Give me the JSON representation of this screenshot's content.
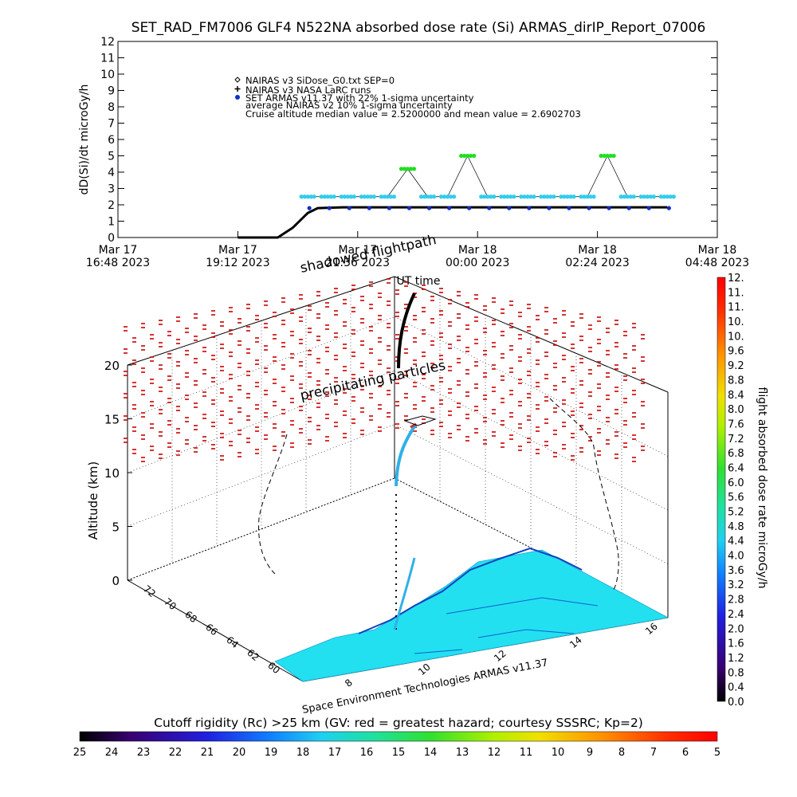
{
  "title": "SET_RAD_FM7006  GLF4 N522NA absorbed dose rate (Si) ARMAS_dirIP_Report_07006",
  "colors": {
    "nairas_sidose": "#000000",
    "larc": "#000000",
    "armas": "#1030c8",
    "uncertainty": "#33ccee",
    "high_dose": "#22dd22",
    "precip": "#cc0000",
    "ground": "#22e0f0"
  },
  "top_chart": {
    "ylabel": "dD(Si)/dt microGy/h",
    "xlabel": "UT time",
    "yticks": [
      "0",
      "1",
      "2",
      "3",
      "4",
      "5",
      "6",
      "7",
      "8",
      "9",
      "10",
      "11",
      "12"
    ],
    "xticks": [
      {
        "line1": "Mar 17",
        "line2": "16:48 2023"
      },
      {
        "line1": "Mar 17",
        "line2": "19:12 2023"
      },
      {
        "line1": "Mar 17",
        "line2": "21:36 2023"
      },
      {
        "line1": "Mar 18",
        "line2": "00:00 2023"
      },
      {
        "line1": "Mar 18",
        "line2": "02:24 2023"
      },
      {
        "line1": "Mar 18",
        "line2": "04:48 2023"
      }
    ],
    "legend": [
      {
        "marker": "diamond",
        "text": "NAIRAS v3 SiDose_G0.txt SEP=0"
      },
      {
        "marker": "plus",
        "text": "NAIRAS v3 NASA LaRC runs"
      },
      {
        "marker": "dot",
        "text": "SET ARMAS v11.37 with 22% 1-sigma uncertainty"
      },
      {
        "marker": "none",
        "text": "average NAIRAS v2 10% 1-sigma uncertainty"
      },
      {
        "marker": "none",
        "text": "Cruise altitude median value =   2.5200000 and mean value =   2.6902703"
      }
    ],
    "overlay_label": "shadowed flightpath"
  },
  "chart_data": [
    {
      "type": "scatter",
      "title": "SET_RAD_FM7006  GLF4 N522NA absorbed dose rate (Si) ARMAS_dirIP_Report_07006",
      "xlabel": "UT time",
      "ylabel": "dD(Si)/dt microGy/h",
      "x_unit": "hours since Mar 17 16:48 2023",
      "xlim": [
        0,
        12
      ],
      "ylim": [
        0,
        12
      ],
      "grid": false,
      "legend_position": "top-left",
      "series": [
        {
          "name": "NAIRAS v3 SiDose_G0.txt SEP=0",
          "x": [
            2.4,
            3.2,
            3.5,
            3.8,
            4.0,
            4.5,
            6.0,
            8.0,
            10.0,
            11.0
          ],
          "values": [
            0.0,
            0.0,
            0.6,
            1.5,
            1.8,
            1.85,
            1.85,
            1.85,
            1.85,
            1.85
          ]
        },
        {
          "name": "SET ARMAS v11.37 with 22% 1-sigma uncertainty",
          "x": [
            3.8,
            4.2,
            4.6,
            5.0,
            5.4,
            5.8,
            6.2,
            6.6,
            7.0,
            7.4,
            7.8,
            8.2,
            8.6,
            9.0,
            9.4,
            9.8,
            10.2,
            10.6,
            11.0
          ],
          "values": [
            2.5,
            2.5,
            2.5,
            2.5,
            2.5,
            4.2,
            2.5,
            2.5,
            5.0,
            2.5,
            2.5,
            2.5,
            2.5,
            2.5,
            2.5,
            5.0,
            2.5,
            2.5,
            2.5
          ]
        }
      ]
    },
    {
      "type": "scatter",
      "title": "",
      "ylabel": "Altitude (km)",
      "ylim": [
        0,
        20
      ],
      "yticks": [
        "0",
        "5",
        "10",
        "15",
        "20"
      ],
      "lat_ticks": [
        "60",
        "62",
        "64",
        "66",
        "68",
        "70",
        "72"
      ],
      "lon_ticks": [
        "8",
        "10",
        "12",
        "14",
        "16"
      ],
      "annotation": "precipitating particles",
      "footer": "Space Environment Technologies ARMAS v11.37"
    }
  ],
  "dose_colorbar": {
    "label": "flight absorbed dose rate microGy/h",
    "ticks": [
      "0.0",
      "0.4",
      "0.8",
      "1.2",
      "1.6",
      "2.0",
      "2.4",
      "2.8",
      "3.2",
      "3.6",
      "4.0",
      "4.4",
      "4.8",
      "5.2",
      "5.6",
      "6.0",
      "6.4",
      "6.8",
      "7.2",
      "7.6",
      "8.0",
      "8.4",
      "8.8",
      "9.2",
      "9.6",
      "10.",
      "10.",
      "11.",
      "11.",
      "12."
    ]
  },
  "cutoff_colorbar": {
    "label": "Cutoff rigidity (Rc) >25 km (GV: red = greatest hazard; courtesy SSSRC; Kp=2)",
    "ticks": [
      "25",
      "24",
      "23",
      "22",
      "21",
      "20",
      "19",
      "18",
      "17",
      "16",
      "15",
      "14",
      "13",
      "12",
      "11",
      "10",
      "9",
      "8",
      "7",
      "6",
      "5"
    ]
  }
}
